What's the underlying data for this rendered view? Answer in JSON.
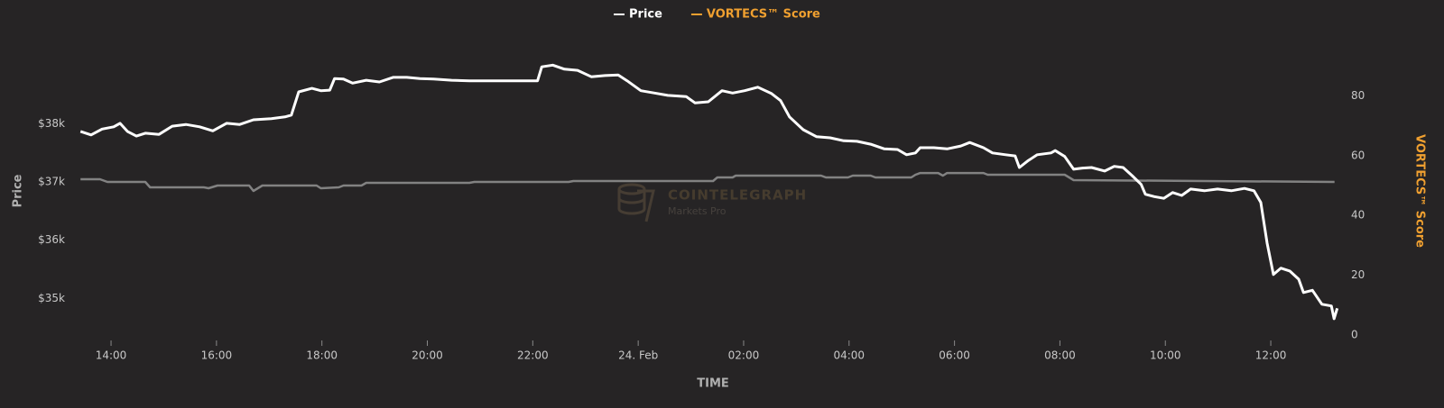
{
  "chart_data": {
    "type": "line",
    "legend": "top",
    "grid": false,
    "xlabel": "TIME",
    "ylabel": "Price",
    "y2label": "VORTECS™ Score",
    "y2label_color": "#f0a030",
    "watermark": {
      "title": "COINTELEGRAPH",
      "subtitle": "Markets Pro"
    },
    "xlim": [
      13.4,
      37.3
    ],
    "xticks": [
      {
        "value": 14,
        "label": "14:00"
      },
      {
        "value": 16,
        "label": "16:00"
      },
      {
        "value": 18,
        "label": "18:00"
      },
      {
        "value": 20,
        "label": "20:00"
      },
      {
        "value": 22,
        "label": "22:00"
      },
      {
        "value": 24,
        "label": "24. Feb"
      },
      {
        "value": 26,
        "label": "02:00"
      },
      {
        "value": 28,
        "label": "04:00"
      },
      {
        "value": 30,
        "label": "06:00"
      },
      {
        "value": 32,
        "label": "08:00"
      },
      {
        "value": 34,
        "label": "10:00"
      },
      {
        "value": 36,
        "label": "12:00"
      }
    ],
    "ylim": [
      34370,
      39510
    ],
    "yticks": [
      {
        "value": 35000,
        "label": "$35k"
      },
      {
        "value": 36000,
        "label": "$36k"
      },
      {
        "value": 37000,
        "label": "$37k"
      },
      {
        "value": 38000,
        "label": "$38k"
      }
    ],
    "y2lim": [
      0,
      100
    ],
    "y2ticks": [
      0,
      20,
      40,
      60,
      80
    ],
    "series": [
      {
        "name": "Price",
        "color": "#ffffff",
        "line_color": "#ffffff",
        "axis": "y",
        "x": [
          13.42,
          13.62,
          13.83,
          14.05,
          14.17,
          14.31,
          14.48,
          14.65,
          14.91,
          15.16,
          15.42,
          15.68,
          15.93,
          16.19,
          16.44,
          16.7,
          17.04,
          17.3,
          17.42,
          17.56,
          17.81,
          17.98,
          18.15,
          18.24,
          18.41,
          18.58,
          18.84,
          19.09,
          19.35,
          19.61,
          19.86,
          20.12,
          20.46,
          20.8,
          21.49,
          22.09,
          22.17,
          22.38,
          22.6,
          22.85,
          23.11,
          23.37,
          23.62,
          23.79,
          24.05,
          24.31,
          24.56,
          24.91,
          25.08,
          25.33,
          25.59,
          25.79,
          26.02,
          26.27,
          26.53,
          26.7,
          26.87,
          27.13,
          27.38,
          27.64,
          27.9,
          28.15,
          28.41,
          28.67,
          28.92,
          29.09,
          29.26,
          29.35,
          29.61,
          29.86,
          30.12,
          30.29,
          30.55,
          30.72,
          30.97,
          31.15,
          31.23,
          31.4,
          31.57,
          31.83,
          31.91,
          32.09,
          32.26,
          32.43,
          32.6,
          32.85,
          33.03,
          33.2,
          33.37,
          33.54,
          33.62,
          33.79,
          33.97,
          34.14,
          34.31,
          34.48,
          34.74,
          34.99,
          35.25,
          35.5,
          35.68,
          35.81,
          35.93,
          36.05,
          36.19,
          36.36,
          36.53,
          36.62,
          36.79,
          36.97,
          37.15,
          37.2,
          37.26
        ],
        "values": [
          37870,
          37810,
          37910,
          37950,
          38010,
          37870,
          37790,
          37840,
          37820,
          37960,
          37990,
          37950,
          37880,
          38010,
          37990,
          38070,
          38090,
          38120,
          38150,
          38550,
          38610,
          38570,
          38580,
          38780,
          38770,
          38700,
          38750,
          38720,
          38800,
          38800,
          38780,
          38770,
          38750,
          38740,
          38740,
          38740,
          38980,
          39010,
          38940,
          38920,
          38810,
          38830,
          38840,
          38740,
          38570,
          38530,
          38490,
          38470,
          38360,
          38380,
          38570,
          38530,
          38570,
          38630,
          38520,
          38400,
          38120,
          37900,
          37780,
          37760,
          37710,
          37700,
          37650,
          37570,
          37560,
          37470,
          37500,
          37590,
          37590,
          37570,
          37620,
          37680,
          37590,
          37500,
          37470,
          37450,
          37250,
          37370,
          37470,
          37500,
          37540,
          37440,
          37220,
          37240,
          37250,
          37190,
          37270,
          37250,
          37110,
          36960,
          36790,
          36750,
          36720,
          36820,
          36770,
          36880,
          36850,
          36880,
          36850,
          36890,
          36850,
          36650,
          35950,
          35410,
          35520,
          35470,
          35330,
          35100,
          35140,
          34900,
          34870,
          34650,
          34830
        ]
      },
      {
        "name": "VORTECS™ Score",
        "color": "#f0a030",
        "line_color": "#828282",
        "axis": "y2",
        "x": [
          13.42,
          13.79,
          13.93,
          14.65,
          14.74,
          15.76,
          15.85,
          16.02,
          16.62,
          16.7,
          16.87,
          17.9,
          17.98,
          18.32,
          18.41,
          18.75,
          18.84,
          20.8,
          20.89,
          22.68,
          22.77,
          25.42,
          25.5,
          25.79,
          25.85,
          27.47,
          27.56,
          27.98,
          28.07,
          28.41,
          28.5,
          29.18,
          29.26,
          29.35,
          29.69,
          29.78,
          29.86,
          30.55,
          30.63,
          32.09,
          32.26,
          37.21
        ],
        "values": [
          52.1,
          52.1,
          51.2,
          51.2,
          49.4,
          49.4,
          49.1,
          50.0,
          50.0,
          48.2,
          50.0,
          50.0,
          49.1,
          49.4,
          50.0,
          50.0,
          50.9,
          50.9,
          51.2,
          51.2,
          51.5,
          51.5,
          52.7,
          52.7,
          53.3,
          53.3,
          52.7,
          52.7,
          53.3,
          53.3,
          52.7,
          52.7,
          53.6,
          54.2,
          54.2,
          53.3,
          54.2,
          54.2,
          53.6,
          53.6,
          51.8,
          51.2
        ]
      }
    ]
  }
}
